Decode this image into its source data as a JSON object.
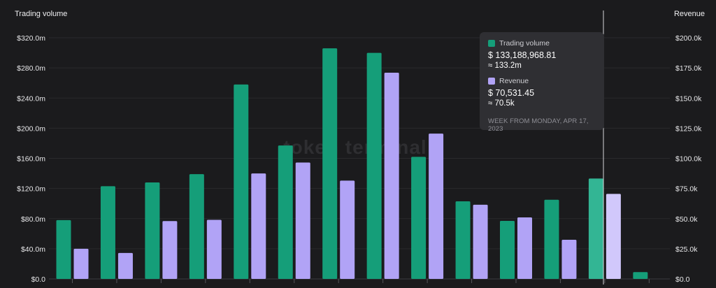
{
  "chart_data": {
    "type": "bar",
    "watermark": "token terminal",
    "y_left": {
      "title": "Trading volume",
      "ticks": [
        "$0.0",
        "$40.0m",
        "$80.0m",
        "$120.0m",
        "$160.0m",
        "$200.0m",
        "$240.0m",
        "$280.0m",
        "$320.0m"
      ],
      "range": [
        0,
        320
      ]
    },
    "y_right": {
      "title": "Revenue",
      "ticks": [
        "$0.0",
        "$25.0k",
        "$50.0k",
        "$75.0k",
        "$100.0k",
        "$125.0k",
        "$150.0k",
        "$175.0k",
        "$200.0k"
      ],
      "range": [
        0,
        200
      ]
    },
    "series": [
      {
        "name": "Trading volume",
        "color": "#159e79",
        "unit": "$m",
        "values": [
          78,
          123,
          128,
          139,
          258,
          177,
          306,
          300,
          162,
          103,
          77,
          105,
          133.2,
          9
        ]
      },
      {
        "name": "Revenue",
        "color": "#b1a3f6",
        "unit": "$k",
        "values": [
          25,
          21.5,
          48,
          49,
          87.5,
          96.5,
          81.5,
          171,
          120.5,
          61.5,
          51,
          32.5,
          70.5,
          null
        ]
      }
    ],
    "highlight_index": 12,
    "highlight_colors": {
      "volume": "#33b594",
      "revenue": "#d1c8fb"
    }
  },
  "tooltip": {
    "volume_label": "Trading volume",
    "volume_value": "$ 133,188,968.81",
    "volume_approx": "≈ 133.2m",
    "revenue_label": "Revenue",
    "revenue_value": "$ 70,531.45",
    "revenue_approx": "≈ 70.5k",
    "week": "WEEK FROM MONDAY, APR 17, 2023"
  }
}
